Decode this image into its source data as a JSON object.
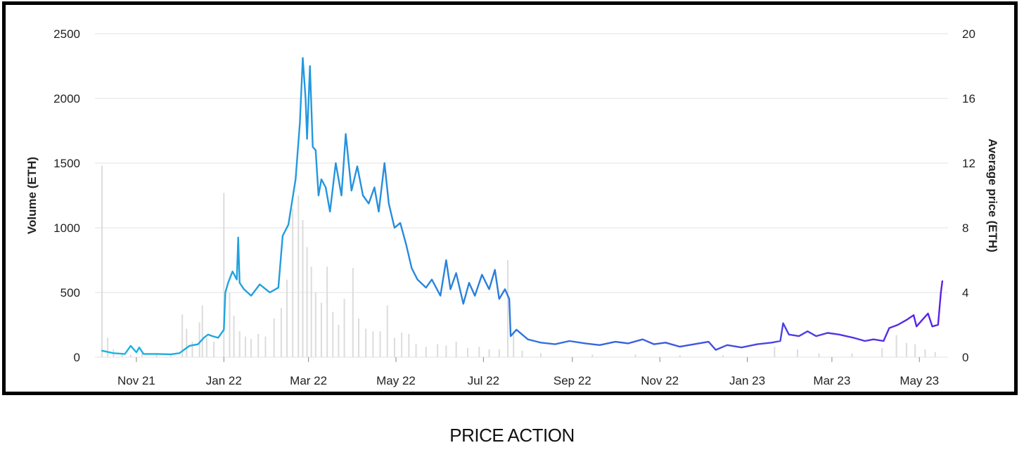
{
  "caption": "PRICE ACTION",
  "chart_data": {
    "type": "line",
    "x_type": "date",
    "x_range": [
      "2021-10-08",
      "2023-05-20"
    ],
    "x_ticks": [
      {
        "date": "2021-11-01",
        "label": "Nov 21"
      },
      {
        "date": "2022-01-01",
        "label": "Jan 22"
      },
      {
        "date": "2022-03-01",
        "label": "Mar 22"
      },
      {
        "date": "2022-05-01",
        "label": "May 22"
      },
      {
        "date": "2022-07-01",
        "label": "Jul 22"
      },
      {
        "date": "2022-09-01",
        "label": "Sep 22"
      },
      {
        "date": "2022-11-01",
        "label": "Nov 22"
      },
      {
        "date": "2023-01-01",
        "label": "Jan 23"
      },
      {
        "date": "2023-03-01",
        "label": "Mar 23"
      },
      {
        "date": "2023-05-01",
        "label": "May 23"
      }
    ],
    "left_axis": {
      "label": "Volume (ETH)",
      "range": [
        0,
        2500
      ],
      "ticks": [
        0,
        500,
        1000,
        1500,
        2000,
        2500
      ]
    },
    "right_axis": {
      "label": "Average price (ETH)",
      "range": [
        0,
        20
      ],
      "ticks": [
        0,
        4,
        8,
        12,
        16,
        20
      ]
    },
    "grid": true,
    "legend": "none",
    "colors": {
      "line_start": "#1ab6e0",
      "line_mid": "#2a7fdc",
      "line_end": "#5b21e6",
      "volume_bars": "#dcdcdc",
      "grid": "#e2e2e2"
    },
    "series": [
      {
        "type": "bar",
        "axis": "left",
        "points": [
          [
            "2021-10-08",
            1480
          ],
          [
            "2021-10-12",
            150
          ],
          [
            "2021-10-16",
            60
          ],
          [
            "2021-10-22",
            30
          ],
          [
            "2021-10-28",
            20
          ],
          [
            "2021-11-05",
            30
          ],
          [
            "2021-11-15",
            20
          ],
          [
            "2021-11-25",
            15
          ],
          [
            "2021-12-03",
            330
          ],
          [
            "2021-12-06",
            220
          ],
          [
            "2021-12-10",
            120
          ],
          [
            "2021-12-15",
            270
          ],
          [
            "2021-12-17",
            400
          ],
          [
            "2021-12-20",
            150
          ],
          [
            "2021-12-25",
            120
          ],
          [
            "2022-01-01",
            1270
          ],
          [
            "2022-01-05",
            500
          ],
          [
            "2022-01-08",
            320
          ],
          [
            "2022-01-12",
            200
          ],
          [
            "2022-01-16",
            160
          ],
          [
            "2022-01-20",
            140
          ],
          [
            "2022-01-25",
            180
          ],
          [
            "2022-01-30",
            160
          ],
          [
            "2022-02-05",
            300
          ],
          [
            "2022-02-10",
            380
          ],
          [
            "2022-02-14",
            600
          ],
          [
            "2022-02-18",
            1150
          ],
          [
            "2022-02-22",
            1250
          ],
          [
            "2022-02-25",
            1060
          ],
          [
            "2022-02-28",
            850
          ],
          [
            "2022-03-03",
            700
          ],
          [
            "2022-03-06",
            500
          ],
          [
            "2022-03-10",
            420
          ],
          [
            "2022-03-14",
            700
          ],
          [
            "2022-03-18",
            350
          ],
          [
            "2022-03-22",
            250
          ],
          [
            "2022-03-26",
            450
          ],
          [
            "2022-04-01",
            690
          ],
          [
            "2022-04-05",
            300
          ],
          [
            "2022-04-10",
            220
          ],
          [
            "2022-04-15",
            200
          ],
          [
            "2022-04-20",
            200
          ],
          [
            "2022-04-25",
            400
          ],
          [
            "2022-04-30",
            150
          ],
          [
            "2022-05-05",
            190
          ],
          [
            "2022-05-10",
            180
          ],
          [
            "2022-05-15",
            100
          ],
          [
            "2022-05-22",
            80
          ],
          [
            "2022-05-30",
            100
          ],
          [
            "2022-06-05",
            90
          ],
          [
            "2022-06-12",
            120
          ],
          [
            "2022-06-20",
            70
          ],
          [
            "2022-06-28",
            80
          ],
          [
            "2022-07-05",
            60
          ],
          [
            "2022-07-12",
            60
          ],
          [
            "2022-07-18",
            750
          ],
          [
            "2022-07-22",
            200
          ],
          [
            "2022-07-28",
            50
          ],
          [
            "2022-08-10",
            30
          ],
          [
            "2022-09-15",
            20
          ],
          [
            "2022-10-15",
            20
          ],
          [
            "2022-11-15",
            15
          ],
          [
            "2022-12-15",
            15
          ],
          [
            "2023-01-20",
            80
          ],
          [
            "2023-02-05",
            60
          ],
          [
            "2023-02-20",
            30
          ],
          [
            "2023-03-15",
            30
          ],
          [
            "2023-04-05",
            70
          ],
          [
            "2023-04-15",
            170
          ],
          [
            "2023-04-22",
            110
          ],
          [
            "2023-04-28",
            100
          ],
          [
            "2023-05-05",
            60
          ],
          [
            "2023-05-12",
            40
          ]
        ]
      },
      {
        "type": "line",
        "axis": "right",
        "points": [
          [
            "2021-10-08",
            0.4
          ],
          [
            "2021-10-16",
            0.25
          ],
          [
            "2021-10-24",
            0.2
          ],
          [
            "2021-10-28",
            0.7
          ],
          [
            "2021-11-01",
            0.3
          ],
          [
            "2021-11-03",
            0.6
          ],
          [
            "2021-11-06",
            0.2
          ],
          [
            "2021-11-15",
            0.2
          ],
          [
            "2021-11-25",
            0.18
          ],
          [
            "2021-12-01",
            0.25
          ],
          [
            "2021-12-08",
            0.7
          ],
          [
            "2021-12-14",
            0.8
          ],
          [
            "2021-12-18",
            1.2
          ],
          [
            "2021-12-21",
            1.4
          ],
          [
            "2021-12-24",
            1.3
          ],
          [
            "2021-12-28",
            1.2
          ],
          [
            "2022-01-01",
            1.7
          ],
          [
            "2022-01-02",
            4.0
          ],
          [
            "2022-01-04",
            4.6
          ],
          [
            "2022-01-07",
            5.3
          ],
          [
            "2022-01-10",
            4.8
          ],
          [
            "2022-01-11",
            7.4
          ],
          [
            "2022-01-12",
            4.6
          ],
          [
            "2022-01-15",
            4.2
          ],
          [
            "2022-01-20",
            3.8
          ],
          [
            "2022-01-26",
            4.5
          ],
          [
            "2022-02-02",
            4.0
          ],
          [
            "2022-02-08",
            4.3
          ],
          [
            "2022-02-11",
            7.5
          ],
          [
            "2022-02-15",
            8.2
          ],
          [
            "2022-02-20",
            11.0
          ],
          [
            "2022-02-23",
            14.5
          ],
          [
            "2022-02-25",
            18.5
          ],
          [
            "2022-02-27",
            16.0
          ],
          [
            "2022-02-28",
            13.5
          ],
          [
            "2022-03-02",
            18.0
          ],
          [
            "2022-03-04",
            13.0
          ],
          [
            "2022-03-06",
            12.8
          ],
          [
            "2022-03-08",
            10.0
          ],
          [
            "2022-03-10",
            11.0
          ],
          [
            "2022-03-13",
            10.5
          ],
          [
            "2022-03-16",
            9.0
          ],
          [
            "2022-03-20",
            12.0
          ],
          [
            "2022-03-24",
            10.0
          ],
          [
            "2022-03-27",
            13.8
          ],
          [
            "2022-03-31",
            10.3
          ],
          [
            "2022-04-04",
            11.8
          ],
          [
            "2022-04-08",
            10.0
          ],
          [
            "2022-04-12",
            9.5
          ],
          [
            "2022-04-16",
            10.5
          ],
          [
            "2022-04-19",
            9.0
          ],
          [
            "2022-04-23",
            12.0
          ],
          [
            "2022-04-26",
            9.5
          ],
          [
            "2022-04-30",
            8.0
          ],
          [
            "2022-05-04",
            8.3
          ],
          [
            "2022-05-08",
            7.0
          ],
          [
            "2022-05-12",
            5.5
          ],
          [
            "2022-05-16",
            4.8
          ],
          [
            "2022-05-22",
            4.3
          ],
          [
            "2022-05-26",
            4.8
          ],
          [
            "2022-06-01",
            3.8
          ],
          [
            "2022-06-05",
            6.0
          ],
          [
            "2022-06-08",
            4.2
          ],
          [
            "2022-06-12",
            5.2
          ],
          [
            "2022-06-17",
            3.3
          ],
          [
            "2022-06-21",
            4.6
          ],
          [
            "2022-06-25",
            3.8
          ],
          [
            "2022-06-30",
            5.1
          ],
          [
            "2022-07-05",
            4.2
          ],
          [
            "2022-07-09",
            5.4
          ],
          [
            "2022-07-12",
            3.6
          ],
          [
            "2022-07-16",
            4.2
          ],
          [
            "2022-07-19",
            3.6
          ],
          [
            "2022-07-20",
            1.3
          ],
          [
            "2022-07-24",
            1.7
          ],
          [
            "2022-08-01",
            1.1
          ],
          [
            "2022-08-10",
            0.9
          ],
          [
            "2022-08-20",
            0.8
          ],
          [
            "2022-08-30",
            1.0
          ],
          [
            "2022-09-10",
            0.85
          ],
          [
            "2022-09-20",
            0.75
          ],
          [
            "2022-10-01",
            0.95
          ],
          [
            "2022-10-10",
            0.85
          ],
          [
            "2022-10-20",
            1.1
          ],
          [
            "2022-10-28",
            0.8
          ],
          [
            "2022-11-05",
            0.9
          ],
          [
            "2022-11-15",
            0.65
          ],
          [
            "2022-11-25",
            0.8
          ],
          [
            "2022-12-05",
            0.95
          ],
          [
            "2022-12-10",
            0.45
          ],
          [
            "2022-12-18",
            0.75
          ],
          [
            "2022-12-28",
            0.6
          ],
          [
            "2023-01-08",
            0.8
          ],
          [
            "2023-01-18",
            0.9
          ],
          [
            "2023-01-24",
            1.0
          ],
          [
            "2023-01-26",
            2.1
          ],
          [
            "2023-01-30",
            1.4
          ],
          [
            "2023-02-06",
            1.3
          ],
          [
            "2023-02-12",
            1.6
          ],
          [
            "2023-02-18",
            1.3
          ],
          [
            "2023-02-26",
            1.5
          ],
          [
            "2023-03-06",
            1.4
          ],
          [
            "2023-03-16",
            1.2
          ],
          [
            "2023-03-24",
            1.0
          ],
          [
            "2023-03-30",
            1.1
          ],
          [
            "2023-04-06",
            1.0
          ],
          [
            "2023-04-10",
            1.8
          ],
          [
            "2023-04-16",
            2.0
          ],
          [
            "2023-04-22",
            2.3
          ],
          [
            "2023-04-27",
            2.6
          ],
          [
            "2023-04-29",
            1.9
          ],
          [
            "2023-05-03",
            2.3
          ],
          [
            "2023-05-07",
            2.7
          ],
          [
            "2023-05-10",
            1.9
          ],
          [
            "2023-05-14",
            2.0
          ],
          [
            "2023-05-16",
            4.0
          ],
          [
            "2023-05-17",
            4.7
          ]
        ]
      }
    ]
  }
}
